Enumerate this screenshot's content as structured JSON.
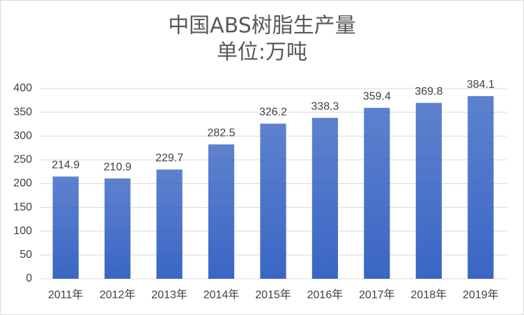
{
  "chart_data": {
    "type": "bar",
    "title": "中国ABS树脂生产量",
    "subtitle": "单位:万吨",
    "categories": [
      "2011年",
      "2012年",
      "2013年",
      "2014年",
      "2015年",
      "2016年",
      "2017年",
      "2018年",
      "2019年"
    ],
    "values": [
      214.9,
      210.9,
      229.7,
      282.5,
      326.2,
      338.3,
      359.4,
      369.8,
      384.1
    ],
    "color": "#3a66c4",
    "ylim": [
      0,
      400
    ],
    "yticks": [
      0,
      50,
      100,
      150,
      200,
      250,
      300,
      350,
      400
    ],
    "grid": true
  }
}
